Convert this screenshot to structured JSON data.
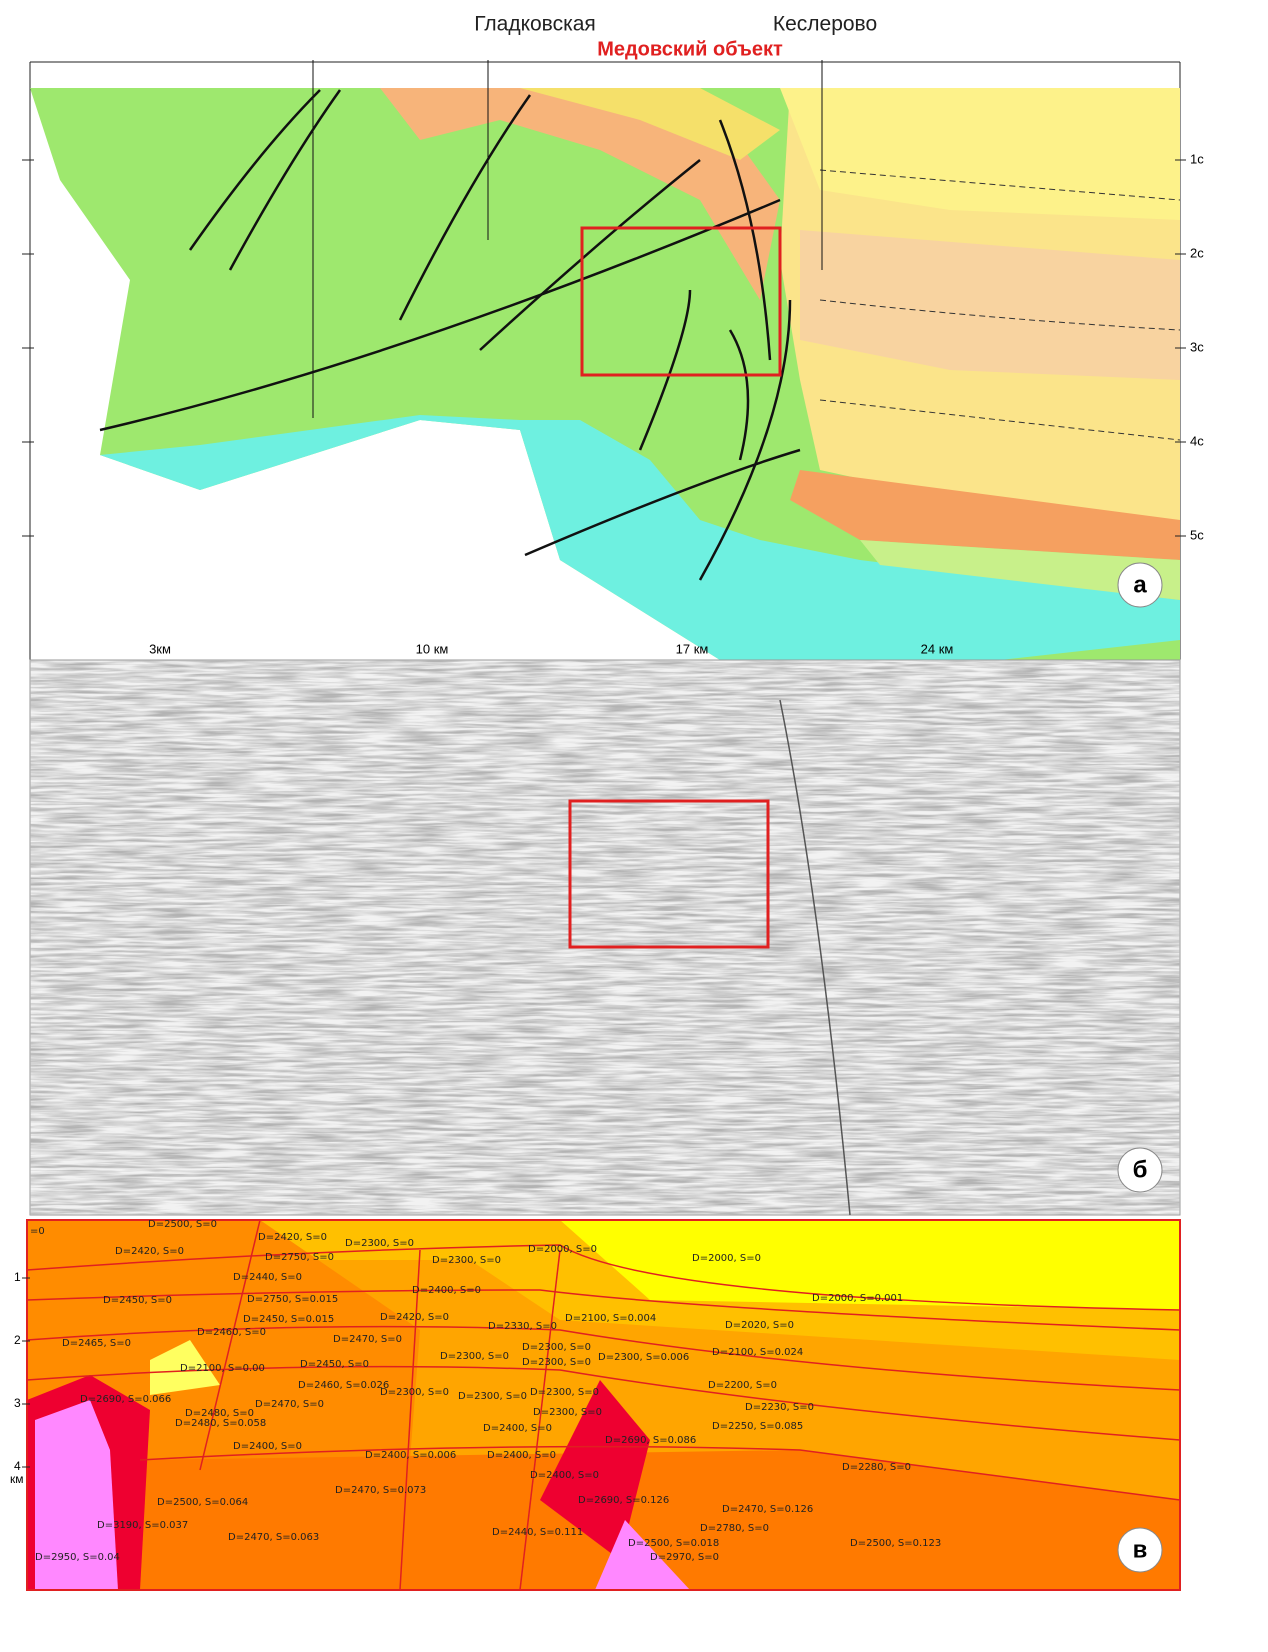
{
  "panel_a": {
    "labels": [
      "Гладковская",
      "Кеслерово"
    ],
    "object": "Медовский объект",
    "time_ticks": [
      "1c",
      "2c",
      "3c",
      "4c",
      "5c"
    ],
    "panel_letter": "а"
  },
  "panel_b": {
    "distance_ticks": [
      "3км",
      "10 км",
      "17 км",
      "24 км"
    ],
    "panel_letter": "б"
  },
  "panel_c": {
    "depth_ticks": [
      "1",
      "2",
      "3",
      "4"
    ],
    "depth_unit": "км",
    "panel_letter": "в",
    "layers": [
      "=0",
      "D=2500, S=0",
      "D=2420, S=0",
      "D=2300, S=0",
      "D=2420, S=0",
      "D=2750, S=0",
      "D=2300, S=0",
      "D=2000, S=0",
      "D=2000, S=0",
      "D=2440, S=0",
      "D=2400, S=0",
      "D=2450, S=0",
      "D=2750, S=0.015",
      "D=2000, S=0.001",
      "D=2450, S=0.015",
      "D=2420, S=0",
      "D=2100, S=0.004",
      "D=2330, S=0",
      "D=2020, S=0",
      "D=2460, S=0",
      "D=2470, S=0",
      "D=2465, S=0",
      "D=2300, S=0",
      "D=2300, S=0",
      "D=2300, S=0",
      "D=2300, S=0.006",
      "D=2100, S=0.024",
      "D=2100, S=0.00",
      "D=2450, S=0",
      "D=2460, S=0.026",
      "D=2300, S=0",
      "D=2300, S=0",
      "D=2300, S=0",
      "D=2200, S=0",
      "D=2690, S=0.066",
      "D=2470, S=0",
      "D=2300, S=0",
      "D=2230, S=0",
      "D=2480, S=0",
      "D=2480, S=0.058",
      "D=2250, S=0.085",
      "D=2400, S=0",
      "D=2690, S=0.086",
      "D=2400, S=0",
      "D=2400, S=0.006",
      "D=2400, S=0",
      "D=2280, S=0",
      "D=2400, S=0",
      "D=2470, S=0.073",
      "D=2690, S=0.126",
      "D=2500, S=0.064",
      "D=2470, S=0.126",
      "D=3190, S=0.037",
      "D=2780, S=0",
      "D=2470, S=0.063",
      "D=2440, S=0.111",
      "D=2500, S=0.018",
      "D=2500, S=0.123",
      "D=2970, S=0",
      "D=2950, S=0.04"
    ]
  }
}
